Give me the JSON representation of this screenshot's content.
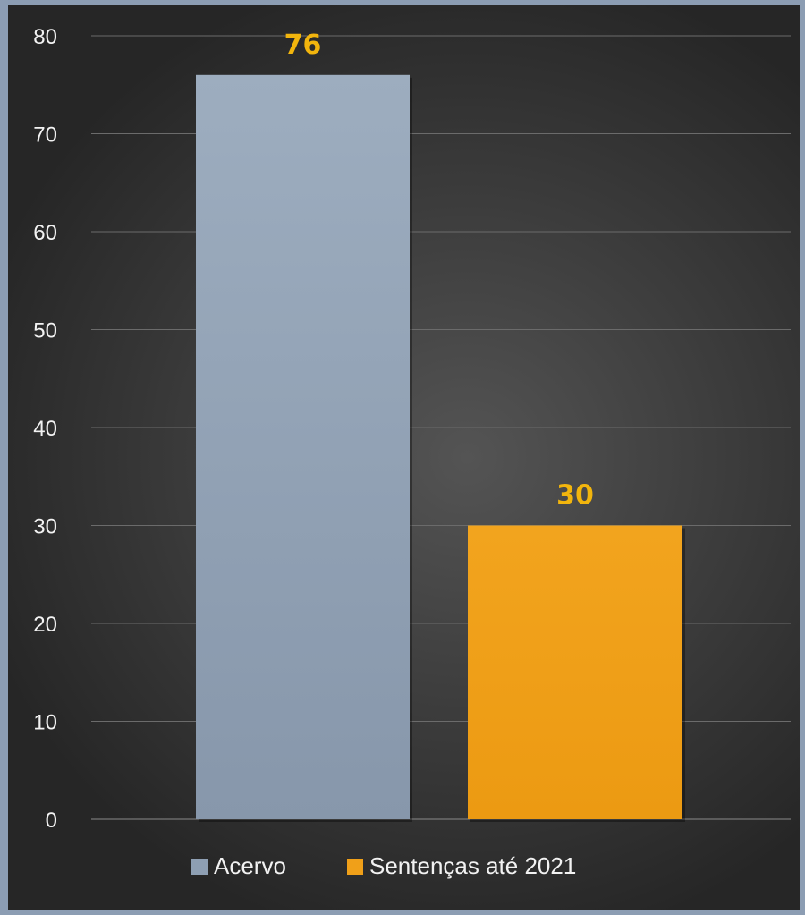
{
  "chart_data": {
    "type": "bar",
    "title": "",
    "xlabel": "",
    "ylabel": "",
    "ylim": [
      0,
      80
    ],
    "y_ticks": [
      0,
      10,
      20,
      30,
      40,
      50,
      60,
      70,
      80
    ],
    "grid": true,
    "legend_position": "bottom",
    "series": [
      {
        "name": "Acervo",
        "value": 76,
        "color": "#8e9fb3"
      },
      {
        "name": "Sentenças até 2021",
        "value": 30,
        "color": "#f0a019"
      }
    ],
    "data_label_color": "#f2b50d",
    "text_color": "#f2f2f2"
  }
}
